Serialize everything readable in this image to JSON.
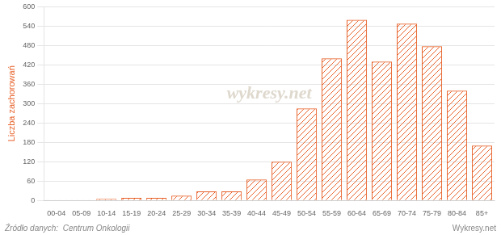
{
  "chart_data": {
    "type": "bar",
    "categories": [
      "00-04",
      "05-09",
      "10-14",
      "15-19",
      "20-24",
      "25-29",
      "30-34",
      "35-39",
      "40-44",
      "45-49",
      "50-54",
      "55-59",
      "60-64",
      "65-69",
      "70-74",
      "75-79",
      "80-84",
      "85+"
    ],
    "values": [
      2,
      2,
      5,
      8,
      8,
      15,
      28,
      28,
      65,
      120,
      285,
      440,
      560,
      430,
      548,
      478,
      340,
      170
    ],
    "color": "#e8622a",
    "ylabel": "Liczba zachorowań",
    "ylim": [
      0,
      600
    ],
    "yticks": [
      0,
      60,
      120,
      180,
      240,
      300,
      360,
      420,
      480,
      540,
      600
    ],
    "grid": true,
    "annotations": [
      "wykresy.net",
      "Źródło danych:  Centrum Onkologii",
      "Wykresy.net"
    ]
  }
}
